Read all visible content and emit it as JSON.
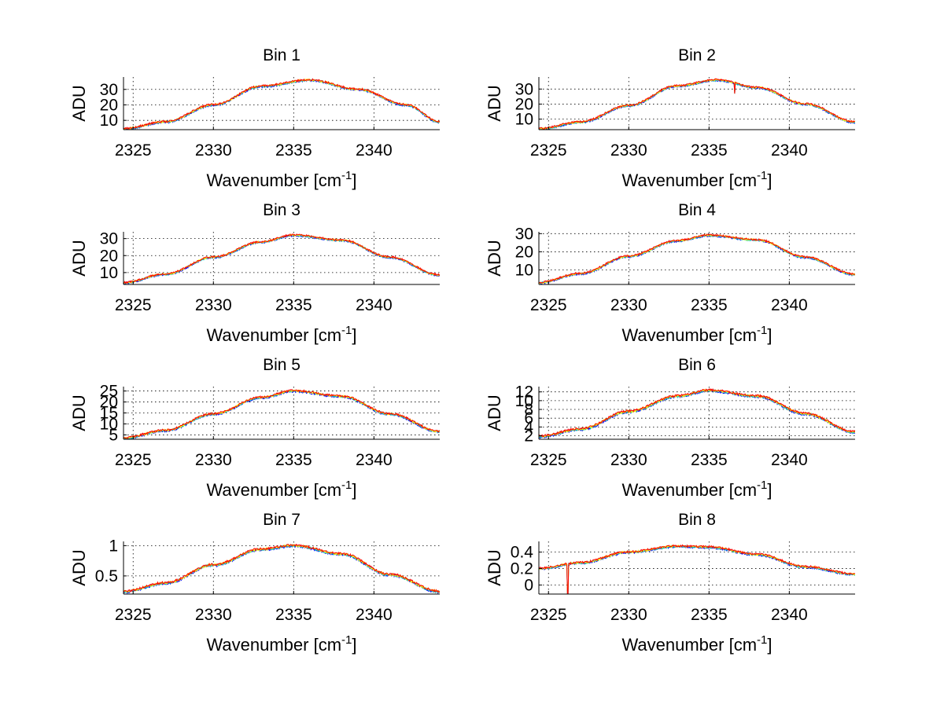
{
  "figure": {
    "background": "#ffffff",
    "series_colors": [
      "#0000ff",
      "#00bfbf",
      "#ffff00",
      "#ff0000"
    ]
  },
  "chart_data": [
    {
      "type": "line",
      "title": "Bin 1",
      "xlabel": "Wavenumber [cm",
      "xlabel_sup": "-1",
      "xlabel_end": "]",
      "ylabel": "ADU",
      "xlim": [
        2324.4,
        2344.1
      ],
      "ylim": [
        4,
        38
      ],
      "xticks": [
        2325,
        2330,
        2335,
        2340
      ],
      "yticks": [
        10,
        20,
        30
      ],
      "grid": true,
      "profile": [
        [
          2324.4,
          4.5
        ],
        [
          2327,
          9
        ],
        [
          2330,
          20
        ],
        [
          2333,
          32
        ],
        [
          2336,
          36
        ],
        [
          2339,
          30
        ],
        [
          2342,
          20
        ],
        [
          2344.1,
          9
        ]
      ],
      "noise": 0.6,
      "spikes": []
    },
    {
      "type": "line",
      "title": "Bin 2",
      "xlabel": "Wavenumber [cm",
      "xlabel_sup": "-1",
      "xlabel_end": "]",
      "ylabel": "ADU",
      "xlim": [
        2324.4,
        2344.1
      ],
      "ylim": [
        3,
        38
      ],
      "xticks": [
        2325,
        2330,
        2335,
        2340
      ],
      "yticks": [
        10,
        20,
        30
      ],
      "grid": true,
      "profile": [
        [
          2324.4,
          3.5
        ],
        [
          2327,
          8
        ],
        [
          2330,
          19
        ],
        [
          2333,
          32
        ],
        [
          2335.5,
          36
        ],
        [
          2338,
          31
        ],
        [
          2341,
          20
        ],
        [
          2344.1,
          8
        ]
      ],
      "noise": 0.6,
      "spikes": [
        [
          2336.6,
          27
        ]
      ]
    },
    {
      "type": "line",
      "title": "Bin 3",
      "xlabel": "Wavenumber [cm",
      "xlabel_sup": "-1",
      "xlabel_end": "]",
      "ylabel": "ADU",
      "xlim": [
        2324.4,
        2344.1
      ],
      "ylim": [
        3,
        34
      ],
      "xticks": [
        2325,
        2330,
        2335,
        2340
      ],
      "yticks": [
        10,
        20,
        30
      ],
      "grid": true,
      "profile": [
        [
          2324.4,
          4
        ],
        [
          2327,
          9
        ],
        [
          2330,
          19
        ],
        [
          2333,
          28
        ],
        [
          2335,
          32
        ],
        [
          2338,
          29
        ],
        [
          2341,
          19
        ],
        [
          2344.1,
          8.5
        ]
      ],
      "noise": 0.5,
      "spikes": []
    },
    {
      "type": "line",
      "title": "Bin 4",
      "xlabel": "Wavenumber [cm",
      "xlabel_sup": "-1",
      "xlabel_end": "]",
      "ylabel": "ADU",
      "xlim": [
        2324.4,
        2344.1
      ],
      "ylim": [
        2,
        31
      ],
      "xticks": [
        2325,
        2330,
        2335,
        2340
      ],
      "yticks": [
        10,
        20,
        30
      ],
      "grid": true,
      "profile": [
        [
          2324.4,
          3
        ],
        [
          2327,
          8
        ],
        [
          2330,
          17.5
        ],
        [
          2333,
          26
        ],
        [
          2335,
          29
        ],
        [
          2338,
          26.5
        ],
        [
          2341,
          17
        ],
        [
          2344.1,
          7.5
        ]
      ],
      "noise": 0.5,
      "spikes": []
    },
    {
      "type": "line",
      "title": "Bin 5",
      "xlabel": "Wavenumber [cm",
      "xlabel_sup": "-1",
      "xlabel_end": "]",
      "ylabel": "ADU",
      "xlim": [
        2324.4,
        2344.1
      ],
      "ylim": [
        3,
        27
      ],
      "xticks": [
        2325,
        2330,
        2335,
        2340
      ],
      "yticks": [
        5,
        10,
        15,
        20,
        25
      ],
      "grid": true,
      "profile": [
        [
          2324.4,
          3.5
        ],
        [
          2327,
          7
        ],
        [
          2330,
          14.5
        ],
        [
          2333,
          22
        ],
        [
          2335,
          25
        ],
        [
          2338,
          22.5
        ],
        [
          2341,
          14.5
        ],
        [
          2344.1,
          6.5
        ]
      ],
      "noise": 0.45,
      "spikes": []
    },
    {
      "type": "line",
      "title": "Bin 6",
      "xlabel": "Wavenumber [cm",
      "xlabel_sup": "-1",
      "xlabel_end": "]",
      "ylabel": "ADU",
      "xlim": [
        2324.4,
        2344.1
      ],
      "ylim": [
        1.2,
        13.2
      ],
      "xticks": [
        2325,
        2330,
        2335,
        2340
      ],
      "yticks": [
        2,
        4,
        6,
        8,
        10,
        12
      ],
      "grid": true,
      "profile": [
        [
          2324.4,
          1.8
        ],
        [
          2327,
          3.5
        ],
        [
          2330,
          7.5
        ],
        [
          2333,
          11
        ],
        [
          2335,
          12.3
        ],
        [
          2338,
          11
        ],
        [
          2341,
          7
        ],
        [
          2344.1,
          2.8
        ]
      ],
      "noise": 0.25,
      "spikes": []
    },
    {
      "type": "line",
      "title": "Bin 7",
      "xlabel": "Wavenumber [cm",
      "xlabel_sup": "-1",
      "xlabel_end": "]",
      "ylabel": "ADU",
      "xlim": [
        2324.4,
        2344.1
      ],
      "ylim": [
        0.2,
        1.07
      ],
      "xticks": [
        2325,
        2330,
        2335,
        2340
      ],
      "yticks": [
        0.5,
        1
      ],
      "grid": true,
      "profile": [
        [
          2324.4,
          0.24
        ],
        [
          2327,
          0.38
        ],
        [
          2330,
          0.68
        ],
        [
          2333,
          0.94
        ],
        [
          2335,
          1.0
        ],
        [
          2338,
          0.86
        ],
        [
          2341,
          0.52
        ],
        [
          2344.1,
          0.24
        ]
      ],
      "noise": 0.018,
      "spikes": []
    },
    {
      "type": "line",
      "title": "Bin 8",
      "xlabel": "Wavenumber [cm",
      "xlabel_sup": "-1",
      "xlabel_end": "]",
      "ylabel": "ADU",
      "xlim": [
        2324.4,
        2344.1
      ],
      "ylim": [
        -0.11,
        0.53
      ],
      "xticks": [
        2325,
        2330,
        2335,
        2340
      ],
      "yticks": [
        0,
        0.2,
        0.4
      ],
      "grid": true,
      "profile": [
        [
          2324.4,
          0.2
        ],
        [
          2327,
          0.27
        ],
        [
          2330,
          0.4
        ],
        [
          2333,
          0.47
        ],
        [
          2335,
          0.46
        ],
        [
          2338,
          0.37
        ],
        [
          2341,
          0.22
        ],
        [
          2344.1,
          0.13
        ]
      ],
      "noise": 0.012,
      "spikes": [
        [
          2326.2,
          -0.1
        ]
      ]
    }
  ]
}
